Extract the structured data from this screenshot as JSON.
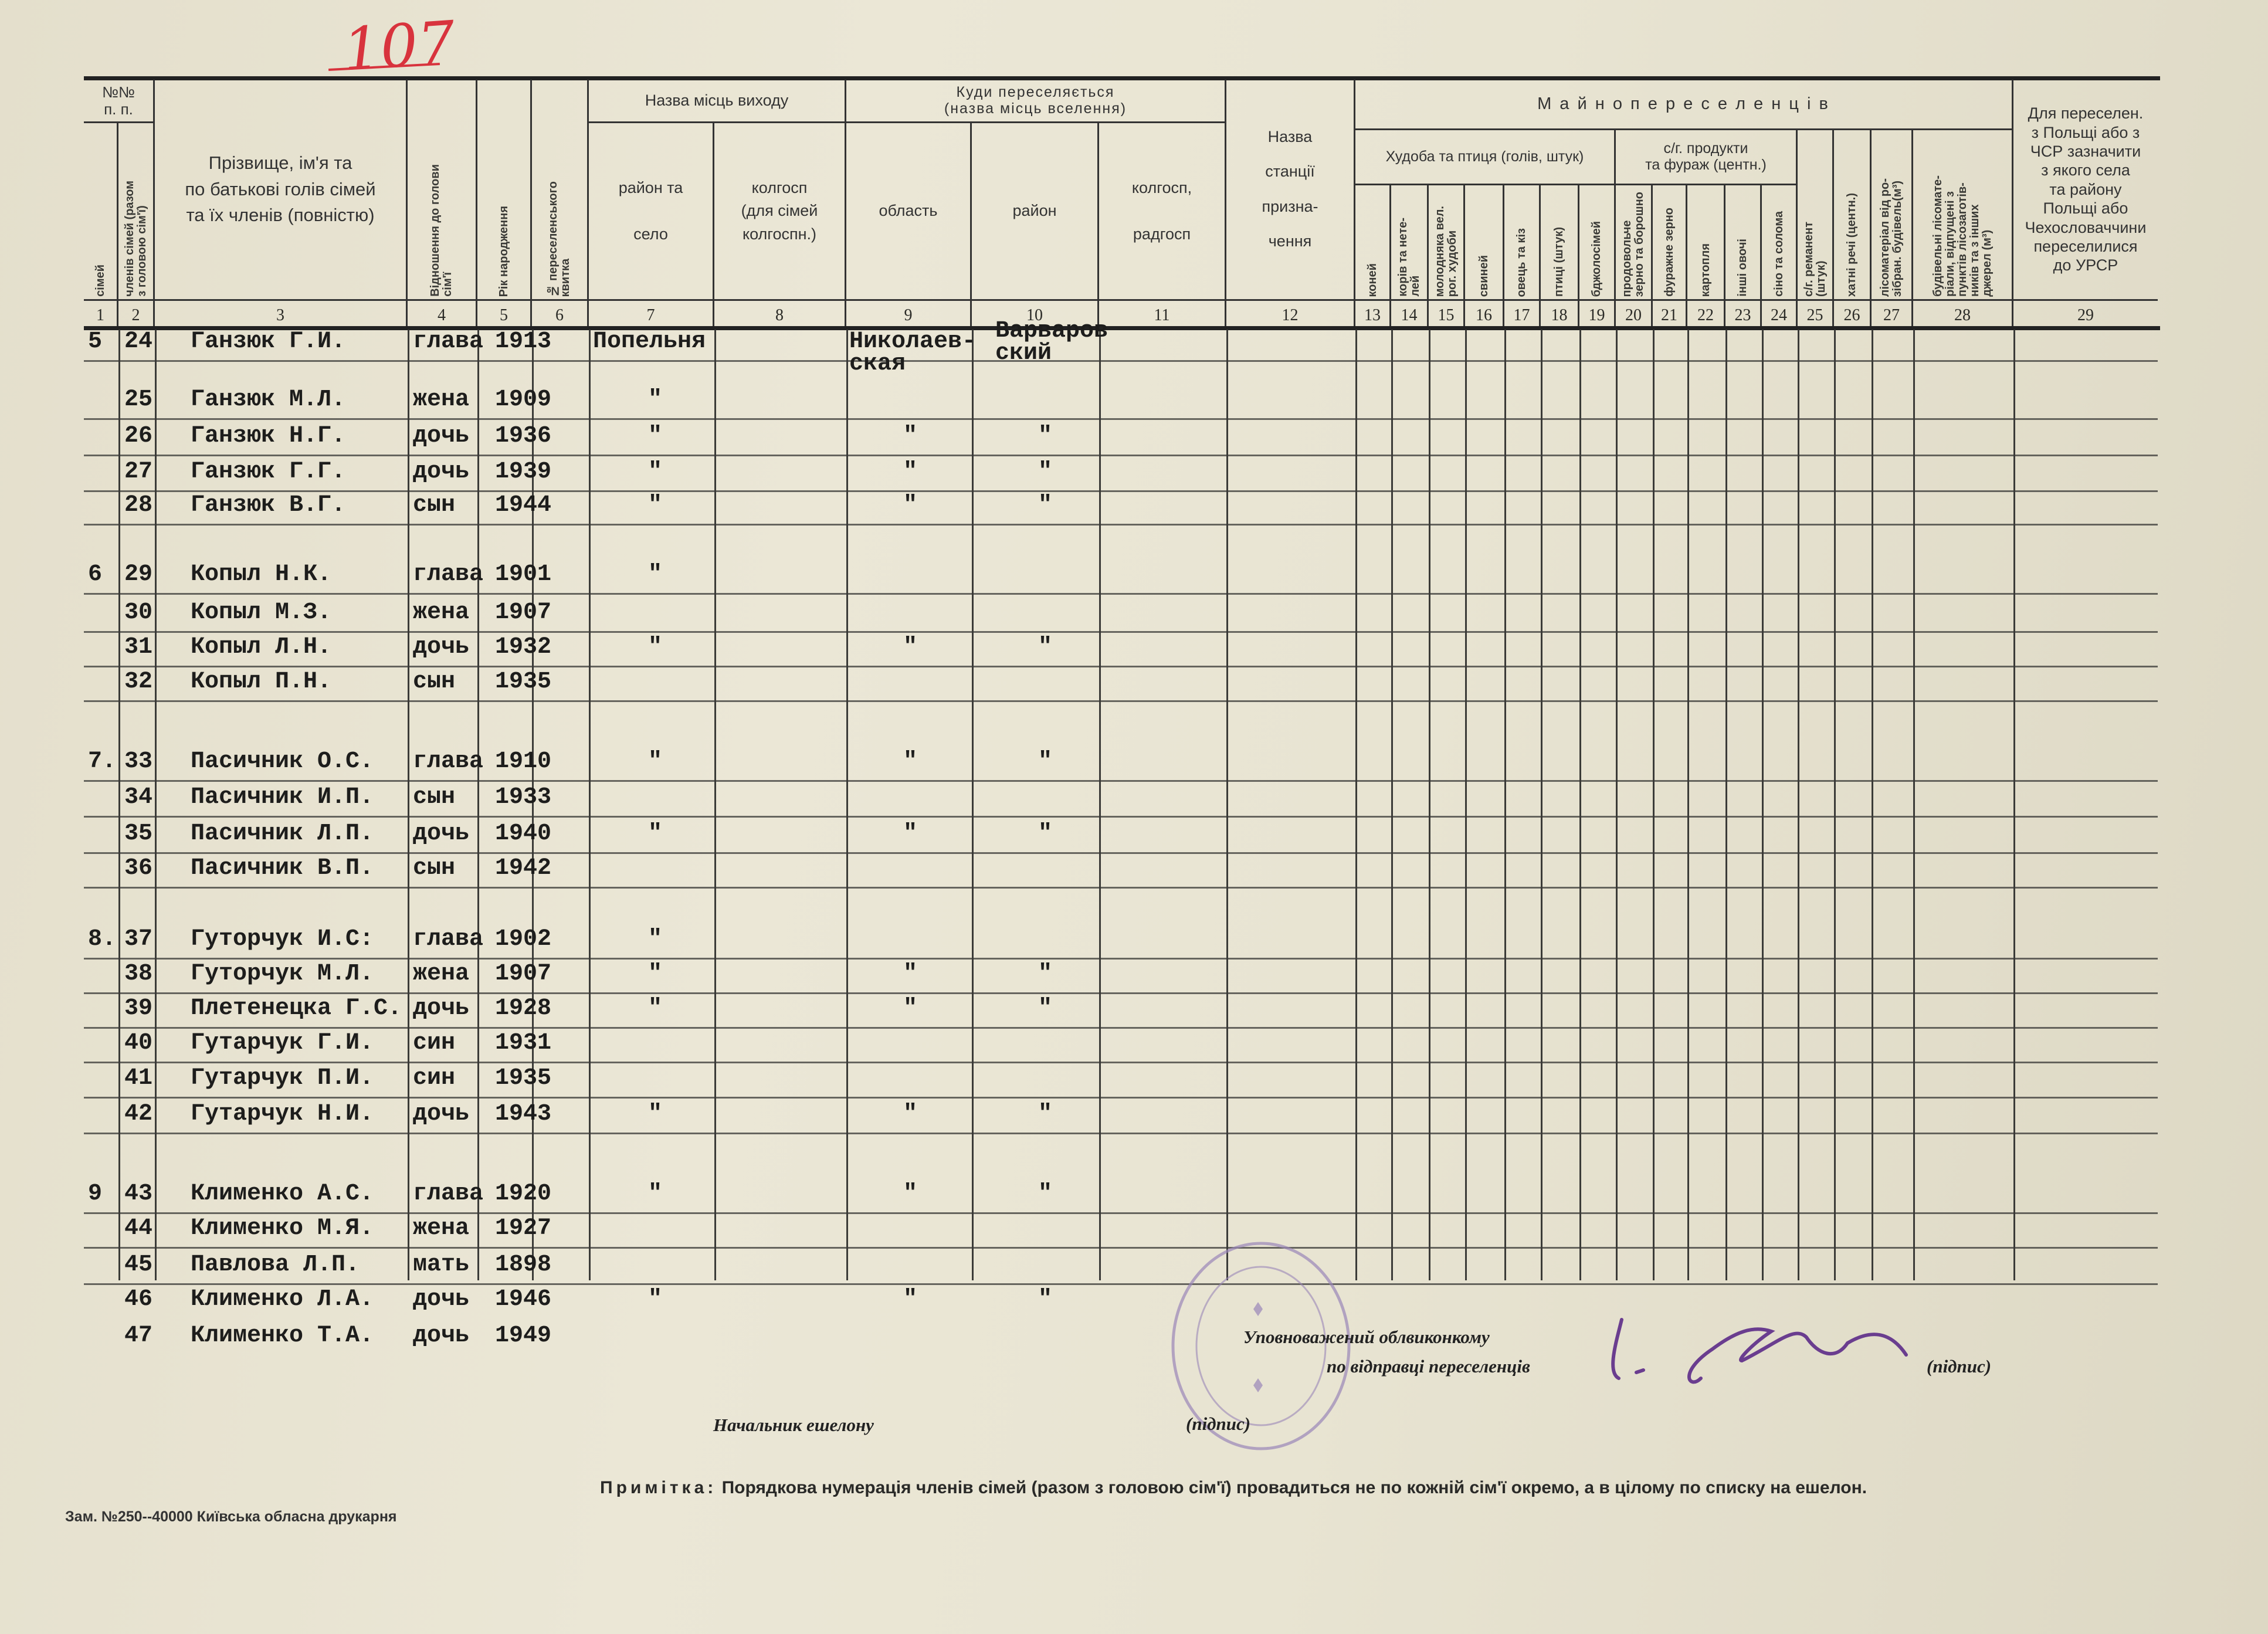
{
  "page_number": "107",
  "header": {
    "no_title": "№№\nп. п.",
    "c1": "сімей",
    "c2": "членів сімей (разом\nз головою сім'ї)",
    "c3": "Прізвище, ім'я та\nпо батькові голів сімей\nта їх членів (повністю)",
    "c4": "Відношення до голови\nсім'ї",
    "c5": "Рік народження",
    "c6": "№ переселенського\nквитка",
    "from_group": "Назва місць виходу",
    "c7": "район та\n\nсело",
    "c8": "колгосп\n(для сімей\nколгоспн.)",
    "to_group": "Куди переселяється\n(назва місць вселення)",
    "c9": "область",
    "c10": "район",
    "c11": "колгосп,\n\nрадгосп",
    "c12": "Назва\n\nстанції\n\nпризна-\n\nчення",
    "property_group": "М а й н о   п е р е с е л е н ц і в",
    "livestock_group": "Худоба та птиця (голів, штук)",
    "produce_group": "с/г. продукти\nта фураж (центн.)",
    "c13": "коней",
    "c14": "корів та нете-\nлей",
    "c15": "молодняка вел.\nрог. худоби",
    "c16": "свиней",
    "c17": "овець та кіз",
    "c18": "птиці (штук)",
    "c19": "бджолосімей",
    "c20": "продовольче\nзерно та борошно",
    "c21": "фуражне зерно",
    "c22": "картопля",
    "c23": "інші овочі",
    "c24": "сіно та солома",
    "c25": "с/г. реманент\n(штук)",
    "c26": "хатні речі (центн.)",
    "c27": "лісоматеріал від ро-\nзібран. будівель(м³)",
    "c28": "будівельні лісомате-\nріали, відпущені з\nпунктів лісозаготів-\nників та з інших\nджерел (м³)",
    "c29": "Для переселен.\nз Польщі або з\nЧСР зазначити\nз якого села\nта району\nПольщі або\nЧехословаччини\nпереселилися\nдо УРСР",
    "numbers": [
      "1",
      "2",
      "3",
      "4",
      "5",
      "6",
      "7",
      "8",
      "9",
      "10",
      "11",
      "12",
      "13",
      "14",
      "15",
      "16",
      "17",
      "18",
      "19",
      "20",
      "21",
      "22",
      "23",
      "24",
      "25",
      "26",
      "27",
      "28",
      "29"
    ]
  },
  "rows": [
    {
      "family": "5",
      "no": "24",
      "name": "Ганзюк Г.И.",
      "relation": "глава",
      "year": "1913",
      "from": "Попельня",
      "oblast": "Николаев-\nская",
      "raion": "Варваров\nский"
    },
    {
      "family": "",
      "no": "25",
      "name": "Ганзюк М.Л.",
      "relation": "жена",
      "year": "1909",
      "from": "\"",
      "oblast": "",
      "raion": ""
    },
    {
      "family": "",
      "no": "26",
      "name": "Ганзюк Н.Г.",
      "relation": "дочь",
      "year": "1936",
      "from": "\"",
      "oblast": "\"",
      "raion": "\""
    },
    {
      "family": "",
      "no": "27",
      "name": "Ганзюк Г.Г.",
      "relation": "дочь",
      "year": "1939",
      "from": "\"",
      "oblast": "\"",
      "raion": "\""
    },
    {
      "family": "",
      "no": "28",
      "name": "Ганзюк В.Г.",
      "relation": "сын",
      "year": "1944",
      "from": "\"",
      "oblast": "\"",
      "raion": "\""
    },
    {
      "family": "6",
      "no": "29",
      "name": "Копыл Н.К.",
      "relation": "глава",
      "year": "1901",
      "from": "\"",
      "oblast": "",
      "raion": ""
    },
    {
      "family": "",
      "no": "30",
      "name": "Копыл М.З.",
      "relation": "жена",
      "year": "1907",
      "from": "",
      "oblast": "",
      "raion": ""
    },
    {
      "family": "",
      "no": "31",
      "name": "Копыл Л.Н.",
      "relation": "дочь",
      "year": "1932",
      "from": "\"",
      "oblast": "\"",
      "raion": "\""
    },
    {
      "family": "",
      "no": "32",
      "name": "Копыл П.Н.",
      "relation": "сын",
      "year": "1935",
      "from": "",
      "oblast": "",
      "raion": ""
    },
    {
      "family": "7.",
      "no": "33",
      "name": "Пасичник О.С.",
      "relation": "глава",
      "year": "1910",
      "from": "\"",
      "oblast": "\"",
      "raion": "\""
    },
    {
      "family": "",
      "no": "34",
      "name": "Пасичник И.П.",
      "relation": "сын",
      "year": "1933",
      "from": "",
      "oblast": "",
      "raion": ""
    },
    {
      "family": "",
      "no": "35",
      "name": "Пасичник Л.П.",
      "relation": "дочь",
      "year": "1940",
      "from": "\"",
      "oblast": "\"",
      "raion": "\""
    },
    {
      "family": "",
      "no": "36",
      "name": "Пасичник В.П.",
      "relation": "сын",
      "year": "1942",
      "from": "",
      "oblast": "",
      "raion": ""
    },
    {
      "family": "8.",
      "no": "37",
      "name": "Гуторчук И.С:",
      "relation": "глава",
      "year": "1902",
      "from": "\"",
      "oblast": "",
      "raion": ""
    },
    {
      "family": "",
      "no": "38",
      "name": "Гуторчук М.Л.",
      "relation": "жена",
      "year": "1907",
      "from": "\"",
      "oblast": "\"",
      "raion": "\""
    },
    {
      "family": "",
      "no": "39",
      "name": "Плетенецка Г.С.",
      "relation": "дочь",
      "year": "1928",
      "from": "\"",
      "oblast": "\"",
      "raion": "\""
    },
    {
      "family": "",
      "no": "40",
      "name": "Гутарчук Г.И.",
      "relation": "син",
      "year": "1931",
      "from": "",
      "oblast": "",
      "raion": ""
    },
    {
      "family": "",
      "no": "41",
      "name": "Гутарчук П.И.",
      "relation": "син",
      "year": "1935",
      "from": "",
      "oblast": "",
      "raion": ""
    },
    {
      "family": "",
      "no": "42",
      "name": "Гутарчук Н.И.",
      "relation": "дочь",
      "year": "1943",
      "from": "\"",
      "oblast": "\"",
      "raion": "\""
    },
    {
      "family": "9",
      "no": "43",
      "name": "Клименко А.С.",
      "relation": "глава",
      "year": "1920",
      "from": "\"",
      "oblast": "\"",
      "raion": "\""
    },
    {
      "family": "",
      "no": "44",
      "name": "Клименко М.Я.",
      "relation": "жена",
      "year": "1927",
      "from": "",
      "oblast": "",
      "raion": ""
    },
    {
      "family": "",
      "no": "45",
      "name": "Павлова Л.П.",
      "relation": "мать",
      "year": "1898",
      "from": "",
      "oblast": "",
      "raion": ""
    },
    {
      "family": "",
      "no": "46",
      "name": "Клименко Л.А.",
      "relation": "дочь",
      "year": "1946",
      "from": "\"",
      "oblast": "\"",
      "raion": "\""
    },
    {
      "family": "",
      "no": "47",
      "name": "Клименко Т.А.",
      "relation": "дочь",
      "year": "1949",
      "from": "",
      "oblast": "",
      "raion": ""
    }
  ],
  "footer": {
    "authorized_line1": "Уповноважений облвиконкому",
    "authorized_line2": "по відправці переселенців",
    "signature_label_right": "(підпис)",
    "echelon_chief": "Начальник ешелону",
    "signature_label_left": "(підпис)",
    "note_label": "Примітка:",
    "note_text": "Порядкова нумерація членів сімей (разом з головою сім'ї) провадиться не по кожній сім'ї окремо, а в цілому по списку на ешелон.",
    "printer": "Зам. №250--40000 Київська обласна друкарня"
  },
  "colors": {
    "paper": "#e8e4d2",
    "ink": "#1d1d1c",
    "red_pencil": "#d8333d",
    "stamp": "#9a86b8",
    "signature": "#6a3d8f"
  }
}
